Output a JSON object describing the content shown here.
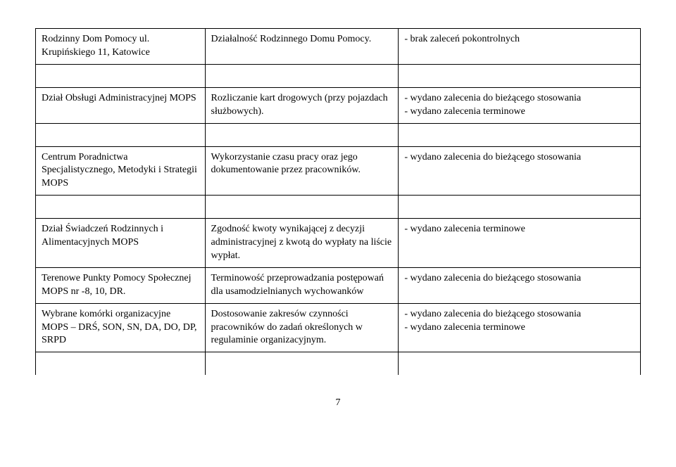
{
  "page_number": "7",
  "rows": [
    {
      "col1": "Rodzinny Dom Pomocy ul. Krupińskiego 11, Katowice",
      "col2": "Działalność Rodzinnego Domu Pomocy.",
      "col3": "- brak zaleceń pokontrolnych"
    },
    {
      "col1": "Dział Obsługi Administracyjnej MOPS",
      "col2": "Rozliczanie kart drogowych (przy pojazdach służbowych).",
      "col3": "- wydano zalecenia do bieżącego stosowania\n- wydano zalecenia terminowe"
    },
    {
      "col1": "Centrum Poradnictwa Specjalistycznego, Metodyki i Strategii MOPS",
      "col2": "Wykorzystanie czasu pracy oraz jego dokumentowanie przez pracowników.",
      "col3": "- wydano zalecenia do bieżącego stosowania"
    },
    {
      "col1": "Dział Świadczeń Rodzinnych i Alimentacyjnych MOPS",
      "col2": "Zgodność kwoty wynikającej z decyzji administracyjnej z kwotą do wypłaty na liście wypłat.",
      "col3": "- wydano zalecenia terminowe"
    },
    {
      "col1": "Terenowe Punkty Pomocy Społecznej MOPS nr -8, 10, DR.",
      "col2": "Terminowość przeprowadzania postępowań dla usamodzielnianych wychowanków",
      "col3": "- wydano zalecenia do bieżącego stosowania"
    },
    {
      "col1": "Wybrane komórki organizacyjne MOPS – DRŚ, SON, SN, DA, DO, DP, SRPD",
      "col2": "Dostosowanie zakresów czynności pracowników do zadań określonych w regulaminie organizacyjnym.",
      "col3": "- wydano zalecenia do bieżącego stosowania\n- wydano zalecenia terminowe"
    }
  ]
}
